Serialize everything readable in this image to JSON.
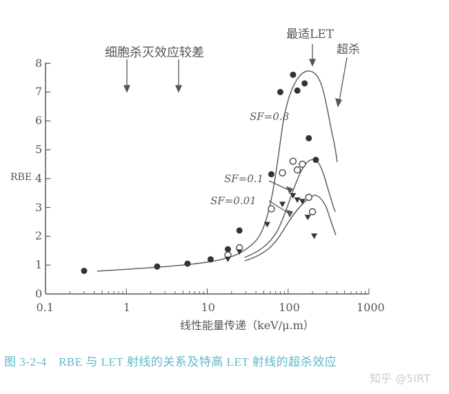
{
  "chart_data": {
    "type": "scatter",
    "title": "",
    "xlabel": "线性能量传递（keV/μ.m）",
    "ylabel": "RBE",
    "xscale": "log",
    "xlim": [
      0.1,
      1000
    ],
    "ylim": [
      0,
      8
    ],
    "x_ticks": [
      "0.1",
      "1",
      "10",
      "100",
      "1000"
    ],
    "y_ticks": [
      "0",
      "1",
      "2",
      "3",
      "4",
      "5",
      "6",
      "7",
      "8"
    ],
    "grid": false,
    "series": [
      {
        "name": "SF=0.8",
        "marker": "filled-circle",
        "x": [
          0.3,
          2.4,
          5.7,
          11,
          18,
          25,
          62,
          80,
          115,
          130,
          160,
          180,
          220
        ],
        "y": [
          0.8,
          0.95,
          1.05,
          1.2,
          1.55,
          2.2,
          4.15,
          7.0,
          7.6,
          7.05,
          7.3,
          5.4,
          4.65
        ]
      },
      {
        "name": "SF=0.1",
        "marker": "open-circle",
        "x": [
          18,
          25,
          62,
          85,
          115,
          130,
          150,
          180,
          200
        ],
        "y": [
          1.35,
          1.6,
          2.95,
          4.2,
          4.6,
          4.3,
          4.5,
          3.35,
          2.85
        ]
      },
      {
        "name": "SF=0.01",
        "marker": "filled-triangle",
        "x": [
          18,
          25,
          55,
          85,
          115,
          130,
          150,
          175,
          210
        ],
        "y": [
          1.2,
          1.45,
          2.4,
          3.1,
          3.4,
          3.25,
          3.2,
          2.65,
          2.0
        ]
      }
    ],
    "annotations": [
      {
        "text": "细胞杀灭效应较差",
        "arrows_at_x": [
          0.7,
          3
        ]
      },
      {
        "text": "最适LET",
        "arrow_at_x": 100
      },
      {
        "text": "超杀",
        "arrow_at_x": 220
      },
      {
        "text": "SF=0.8"
      },
      {
        "text": "SF=0.1"
      },
      {
        "text": "SF=0.01"
      }
    ]
  },
  "labels": {
    "poor_kill": "细胞杀灭效应较差",
    "optimal_let": "最适LET",
    "overkill": "超杀",
    "sf08": "SF=0.8",
    "sf01": "SF=0.1",
    "sf001": "SF=0.01",
    "ylabel": "RBE",
    "xlabel": "线性能量传递（keV/μ.m）",
    "x_ticks": [
      "0.1",
      "1",
      "10",
      "100",
      "1000"
    ],
    "y_ticks": [
      "0",
      "1",
      "2",
      "3",
      "4",
      "5",
      "6",
      "7",
      "8"
    ]
  },
  "caption": "图 3-2-4　RBE 与 LET 射线的关系及特高 LET 射线的超杀效应",
  "watermark": "知乎 @5IRT",
  "colors": {
    "axis": "#555555",
    "caption": "#5fb8c8",
    "watermark": "#cccccc"
  }
}
